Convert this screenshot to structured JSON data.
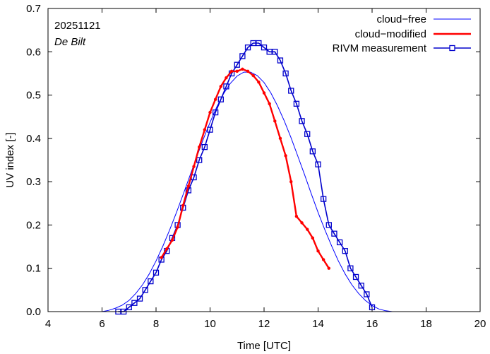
{
  "chart_data": {
    "type": "line",
    "annotations": {
      "date": "20251121",
      "station": "De Bilt"
    },
    "xlabel": "Time  [UTC]",
    "ylabel": "UV index  [-]",
    "xlim": [
      4,
      20
    ],
    "ylim": [
      0,
      0.7
    ],
    "xticks": [
      4,
      6,
      8,
      10,
      12,
      14,
      16,
      18,
      20
    ],
    "yticks": [
      0.0,
      0.1,
      0.2,
      0.3,
      0.4,
      0.5,
      0.6,
      0.7
    ],
    "xtick_labels": [
      "4",
      "6",
      "8",
      "10",
      "12",
      "14",
      "16",
      "18",
      "20"
    ],
    "ytick_labels": [
      "0.0",
      "0.1",
      "0.2",
      "0.3",
      "0.4",
      "0.5",
      "0.6",
      "0.7"
    ],
    "legend_position": "top-right",
    "series": [
      {
        "name": "cloud−free",
        "color": "#0000ff",
        "style": "thin-line",
        "x": [
          6.0,
          6.25,
          6.5,
          6.75,
          7.0,
          7.25,
          7.5,
          7.75,
          8.0,
          8.25,
          8.5,
          8.75,
          9.0,
          9.25,
          9.5,
          9.75,
          10.0,
          10.25,
          10.5,
          10.75,
          11.0,
          11.25,
          11.5,
          11.75,
          12.0,
          12.25,
          12.5,
          12.75,
          13.0,
          13.25,
          13.5,
          13.75,
          14.0,
          14.25,
          14.5,
          14.75,
          15.0,
          15.25,
          15.5,
          15.75,
          16.0,
          16.25,
          16.5,
          16.75
        ],
        "y": [
          0.0,
          0.003,
          0.008,
          0.015,
          0.026,
          0.042,
          0.062,
          0.087,
          0.117,
          0.151,
          0.188,
          0.228,
          0.27,
          0.313,
          0.356,
          0.398,
          0.437,
          0.473,
          0.503,
          0.527,
          0.544,
          0.553,
          0.553,
          0.545,
          0.529,
          0.505,
          0.475,
          0.44,
          0.401,
          0.359,
          0.316,
          0.272,
          0.229,
          0.189,
          0.152,
          0.117,
          0.087,
          0.062,
          0.042,
          0.026,
          0.014,
          0.006,
          0.002,
          0.0
        ]
      },
      {
        "name": "cloud−modified",
        "color": "#ff0000",
        "style": "thick-line-dots",
        "x": [
          8.2,
          8.4,
          8.6,
          8.8,
          9.0,
          9.2,
          9.4,
          9.6,
          9.8,
          10.0,
          10.2,
          10.4,
          10.6,
          10.8,
          11.0,
          11.2,
          11.4,
          11.6,
          11.8,
          12.0,
          12.2,
          12.4,
          12.6,
          12.8,
          13.0,
          13.2,
          13.4,
          13.6,
          13.8,
          14.0,
          14.2,
          14.4
        ],
        "y": [
          0.125,
          0.145,
          0.165,
          0.195,
          0.245,
          0.29,
          0.335,
          0.38,
          0.42,
          0.46,
          0.49,
          0.52,
          0.54,
          0.555,
          0.555,
          0.56,
          0.555,
          0.545,
          0.53,
          0.505,
          0.48,
          0.44,
          0.4,
          0.36,
          0.3,
          0.22,
          0.205,
          0.19,
          0.17,
          0.14,
          0.12,
          0.1
        ]
      },
      {
        "name": "RIVM measurement",
        "color": "#0000cc",
        "style": "line-squares",
        "x": [
          6.6,
          6.8,
          7.0,
          7.2,
          7.4,
          7.6,
          7.8,
          8.0,
          8.2,
          8.4,
          8.6,
          8.8,
          9.0,
          9.2,
          9.4,
          9.6,
          9.8,
          10.0,
          10.2,
          10.4,
          10.6,
          10.8,
          11.0,
          11.2,
          11.4,
          11.6,
          11.8,
          12.0,
          12.2,
          12.4,
          12.6,
          12.8,
          13.0,
          13.2,
          13.4,
          13.6,
          13.8,
          14.0,
          14.2,
          14.4,
          14.6,
          14.8,
          15.0,
          15.2,
          15.4,
          15.6,
          15.8,
          16.0
        ],
        "y": [
          0.0,
          0.0,
          0.01,
          0.02,
          0.03,
          0.05,
          0.07,
          0.09,
          0.12,
          0.14,
          0.17,
          0.2,
          0.24,
          0.28,
          0.31,
          0.35,
          0.38,
          0.42,
          0.46,
          0.49,
          0.52,
          0.55,
          0.57,
          0.59,
          0.61,
          0.62,
          0.62,
          0.61,
          0.6,
          0.6,
          0.58,
          0.55,
          0.51,
          0.48,
          0.44,
          0.41,
          0.37,
          0.34,
          0.26,
          0.2,
          0.18,
          0.16,
          0.14,
          0.1,
          0.08,
          0.06,
          0.04,
          0.01
        ]
      }
    ]
  }
}
